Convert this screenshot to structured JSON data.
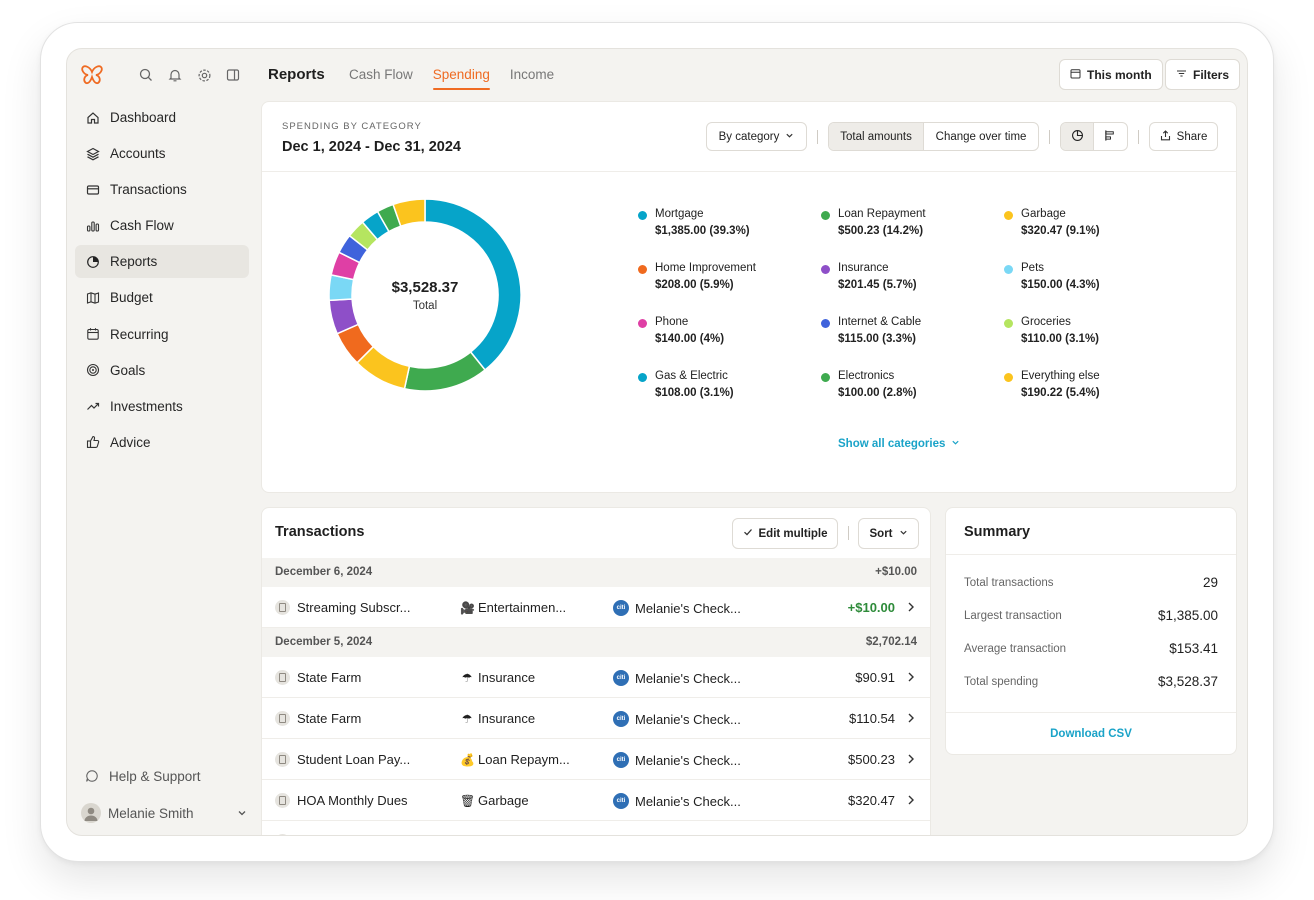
{
  "header": {
    "page_title": "Reports",
    "tabs": [
      {
        "label": "Cash Flow",
        "active": false
      },
      {
        "label": "Spending",
        "active": true
      },
      {
        "label": "Income",
        "active": false
      }
    ],
    "date_button": "This month",
    "filters_button": "Filters"
  },
  "sidebar": {
    "items": [
      {
        "label": "Dashboard",
        "icon": "home-icon"
      },
      {
        "label": "Accounts",
        "icon": "layers-icon"
      },
      {
        "label": "Transactions",
        "icon": "credit-card-icon"
      },
      {
        "label": "Cash Flow",
        "icon": "bar-chart-icon"
      },
      {
        "label": "Reports",
        "icon": "pie-chart-icon",
        "active": true
      },
      {
        "label": "Budget",
        "icon": "map-icon"
      },
      {
        "label": "Recurring",
        "icon": "calendar-icon"
      },
      {
        "label": "Goals",
        "icon": "target-icon"
      },
      {
        "label": "Investments",
        "icon": "trending-up-icon"
      },
      {
        "label": "Advice",
        "icon": "thumbs-up-icon"
      }
    ],
    "help": "Help & Support",
    "user": "Melanie Smith"
  },
  "spending": {
    "kicker": "SPENDING BY CATEGORY",
    "range": "Dec 1, 2024 - Dec 31, 2024",
    "group_by": "By category",
    "mode_total": "Total amounts",
    "mode_change": "Change over time",
    "share": "Share",
    "total_value": "$3,528.37",
    "total_label": "Total",
    "show_all": "Show all categories"
  },
  "chart_data": {
    "type": "pie",
    "title": "",
    "donut": true,
    "total": 3528.37,
    "slices": [
      {
        "name": "Mortgage",
        "value": 1385.0,
        "label": "$1,385.00 (39.3%)",
        "color": "#06a4c9"
      },
      {
        "name": "Loan Repayment",
        "value": 500.23,
        "label": "$500.23 (14.2%)",
        "color": "#3faa4f"
      },
      {
        "name": "Garbage",
        "value": 320.47,
        "label": "$320.47 (9.1%)",
        "color": "#fbc41e"
      },
      {
        "name": "Home Improvement",
        "value": 208.0,
        "label": "$208.00 (5.9%)",
        "color": "#f06a1e"
      },
      {
        "name": "Insurance",
        "value": 201.45,
        "label": "$201.45 (5.7%)",
        "color": "#8e4fc8"
      },
      {
        "name": "Pets",
        "value": 150.0,
        "label": "$150.00 (4.3%)",
        "color": "#7ad8f5"
      },
      {
        "name": "Phone",
        "value": 140.0,
        "label": "$140.00 (4%)",
        "color": "#df3fa5"
      },
      {
        "name": "Internet & Cable",
        "value": 115.0,
        "label": "$115.00 (3.3%)",
        "color": "#3f63dc"
      },
      {
        "name": "Groceries",
        "value": 110.0,
        "label": "$110.00 (3.1%)",
        "color": "#b5e560"
      },
      {
        "name": "Gas & Electric",
        "value": 108.0,
        "label": "$108.00 (3.1%)",
        "color": "#06a4c9"
      },
      {
        "name": "Electronics",
        "value": 100.0,
        "label": "$100.00 (2.8%)",
        "color": "#3faa4f"
      },
      {
        "name": "Everything else",
        "value": 190.22,
        "label": "$190.22 (5.4%)",
        "color": "#fbc41e"
      }
    ]
  },
  "transactions": {
    "title": "Transactions",
    "edit_multiple": "Edit multiple",
    "sort": "Sort",
    "groups": [
      {
        "date": "December 6, 2024",
        "total": "+$10.00",
        "rows": [
          {
            "merchant": "Streaming Subscr...",
            "category_icon": "🎥",
            "category": "Entertainmen...",
            "account": "Melanie's Check...",
            "amount": "+$10.00",
            "positive": true
          }
        ]
      },
      {
        "date": "December 5, 2024",
        "total": "$2,702.14",
        "rows": [
          {
            "merchant": "State Farm",
            "category_icon": "☂",
            "category": "Insurance",
            "account": "Melanie's Check...",
            "amount": "$90.91",
            "positive": false
          },
          {
            "merchant": "State Farm",
            "category_icon": "☂",
            "category": "Insurance",
            "account": "Melanie's Check...",
            "amount": "$110.54",
            "positive": false
          },
          {
            "merchant": "Student Loan Pay...",
            "category_icon": "💰",
            "category": "Loan Repaym...",
            "account": "Melanie's Check...",
            "amount": "$500.23",
            "positive": false
          },
          {
            "merchant": "HOA Monthly Dues",
            "category_icon": "🗑",
            "category": "Garbage",
            "account": "Melanie's Check...",
            "amount": "$320.47",
            "positive": false
          }
        ]
      }
    ],
    "bank_badge": "citi"
  },
  "summary": {
    "title": "Summary",
    "rows": [
      {
        "label": "Total transactions",
        "value": "29"
      },
      {
        "label": "Largest transaction",
        "value": "$1,385.00"
      },
      {
        "label": "Average transaction",
        "value": "$153.41"
      },
      {
        "label": "Total spending",
        "value": "$3,528.37"
      }
    ],
    "download": "Download CSV"
  },
  "colors": {
    "accent": "#ef6b23",
    "link": "#1aa3c8",
    "positive": "#2e8b3a"
  }
}
